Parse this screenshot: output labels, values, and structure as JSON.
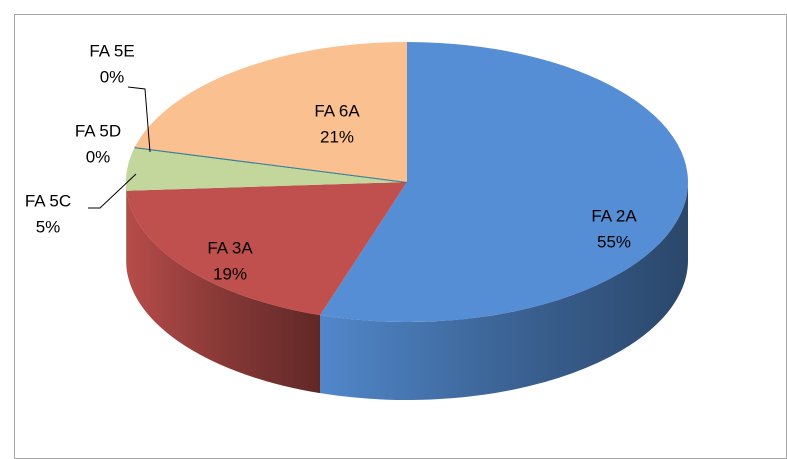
{
  "chart_data": {
    "type": "pie",
    "categories": [
      "FA 2A",
      "FA 3A",
      "FA 5C",
      "FA 5D",
      "FA 5E",
      "FA 6A"
    ],
    "values": [
      55,
      19,
      5,
      0,
      0,
      21
    ],
    "value_labels": [
      "55%",
      "19%",
      "5%",
      "0%",
      "0%",
      "21%"
    ],
    "colors": [
      "#558ed5",
      "#c0504d",
      "#c3d69b",
      "#1f497d",
      "#31859c",
      "#fac090"
    ]
  }
}
